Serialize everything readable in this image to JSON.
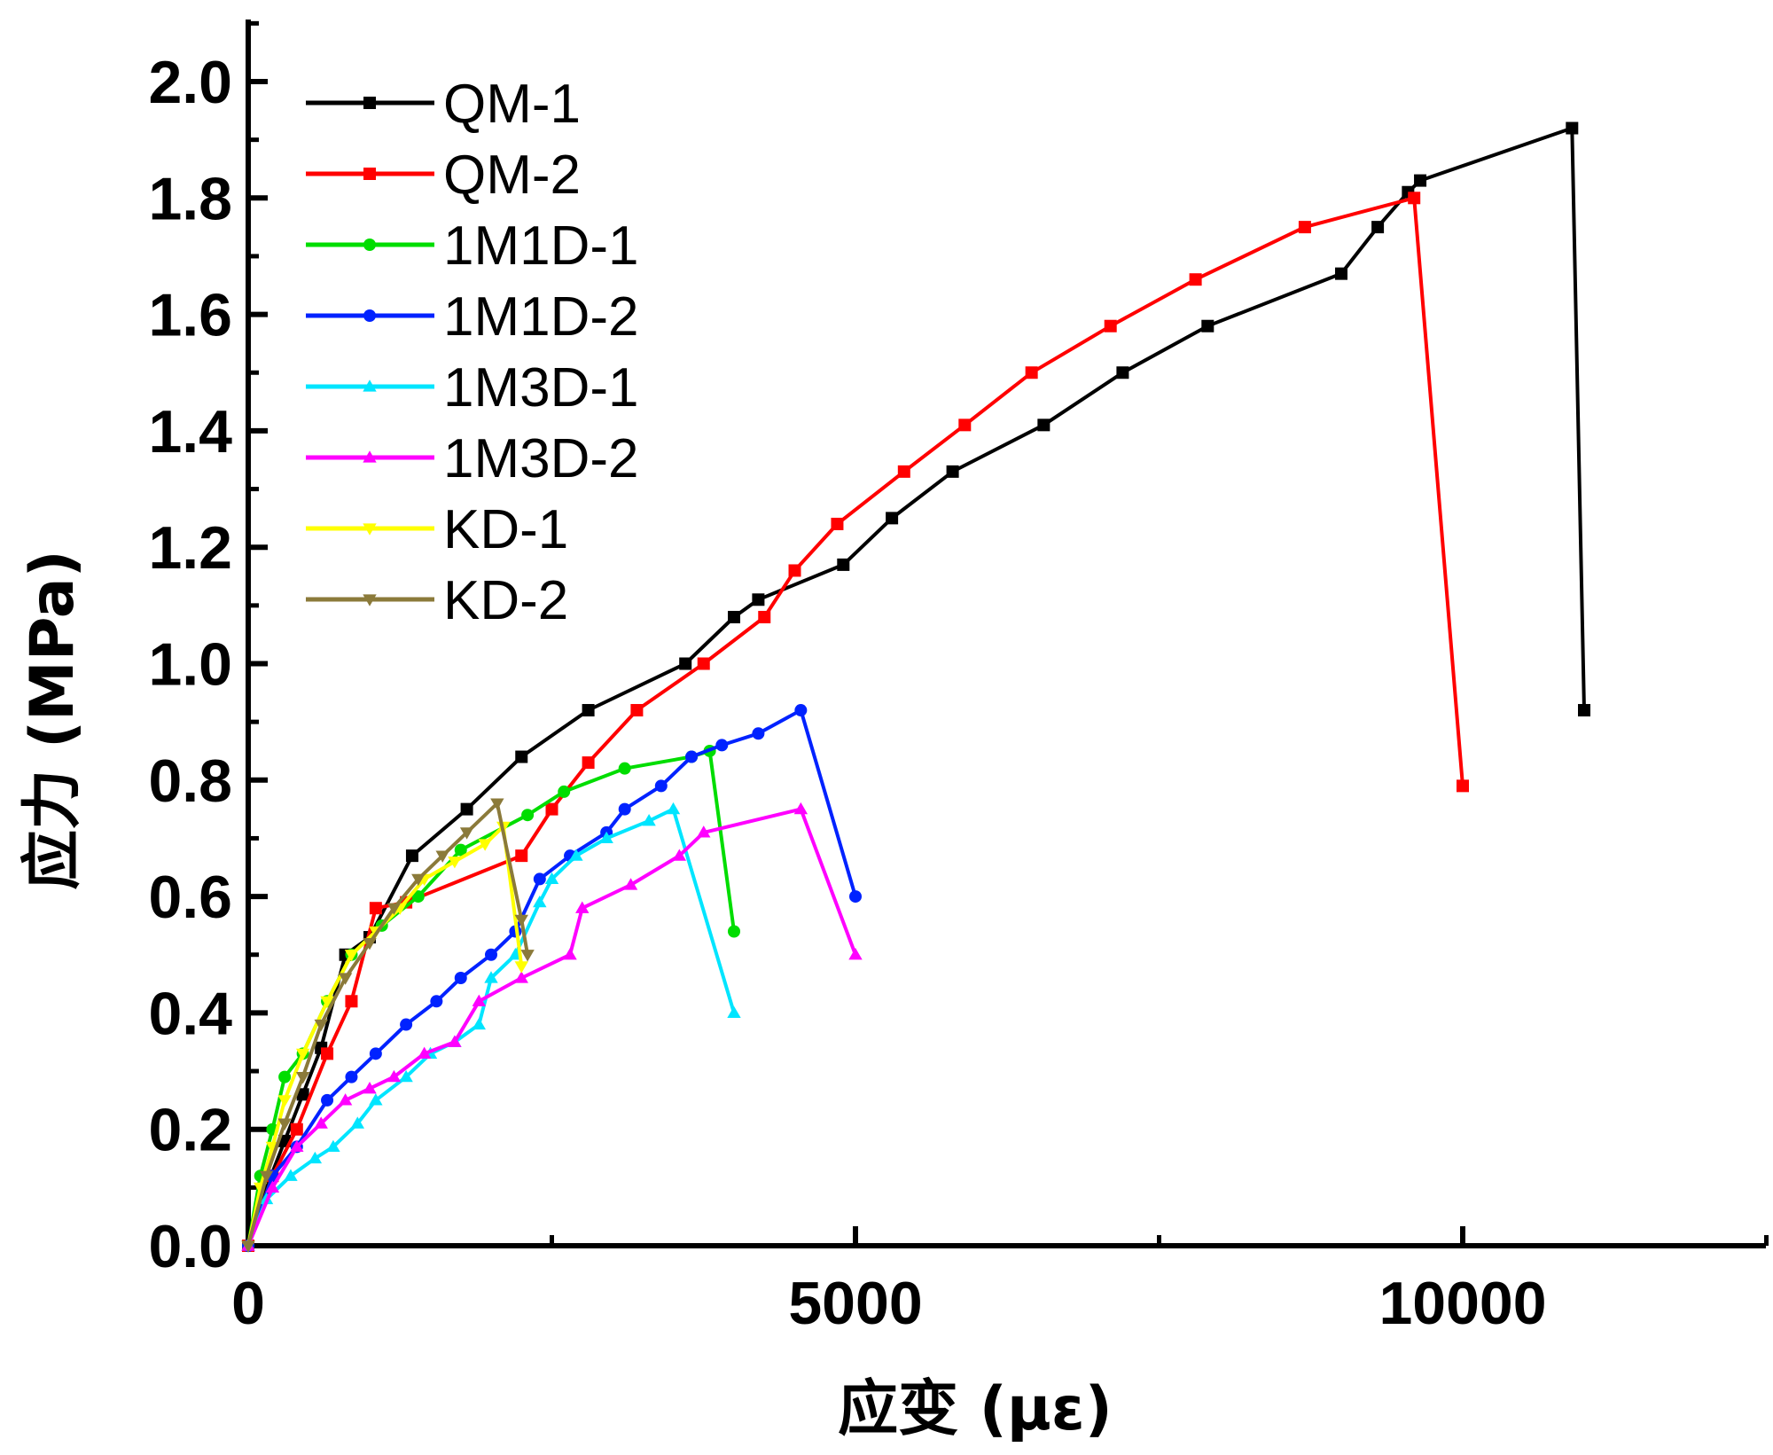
{
  "chart_data": {
    "type": "line",
    "title": "",
    "xlabel": "应变 (με)",
    "ylabel": "应力 (MPa)",
    "xlim": [
      0,
      12500
    ],
    "ylim": [
      0,
      2.1
    ],
    "xticks": [
      0,
      5000,
      10000
    ],
    "xtick_labels": [
      "0",
      "5000",
      "10000"
    ],
    "yticks": [
      0.0,
      0.2,
      0.4,
      0.6,
      0.8,
      1.0,
      1.2,
      1.4,
      1.6,
      1.8,
      2.0
    ],
    "ytick_labels": [
      "0.0",
      "0.2",
      "0.4",
      "0.6",
      "0.8",
      "1.0",
      "1.2",
      "1.4",
      "1.6",
      "1.8",
      "2.0"
    ],
    "legend_position": "top-left",
    "grid": false,
    "series": [
      {
        "name": "QM-1",
        "color": "#000000",
        "marker": "square",
        "x": [
          0,
          150,
          300,
          450,
          600,
          800,
          1000,
          1350,
          1800,
          2250,
          2800,
          3600,
          4000,
          4200,
          4900,
          5300,
          5800,
          6550,
          7200,
          7900,
          9000,
          9300,
          9550,
          9650,
          10900,
          11000
        ],
        "y": [
          0,
          0.1,
          0.18,
          0.26,
          0.34,
          0.5,
          0.53,
          0.67,
          0.75,
          0.84,
          0.92,
          1.0,
          1.08,
          1.11,
          1.17,
          1.25,
          1.33,
          1.41,
          1.5,
          1.58,
          1.67,
          1.75,
          1.81,
          1.83,
          1.92,
          0.92
        ]
      },
      {
        "name": "QM-2",
        "color": "#ff0000",
        "marker": "square",
        "x": [
          0,
          200,
          400,
          650,
          850,
          1050,
          1300,
          2250,
          2500,
          2800,
          3200,
          3750,
          4250,
          4500,
          4850,
          5400,
          5900,
          6450,
          7100,
          7800,
          8700,
          9600,
          10000
        ],
        "y": [
          0,
          0.12,
          0.2,
          0.33,
          0.42,
          0.58,
          0.59,
          0.67,
          0.75,
          0.83,
          0.92,
          1.0,
          1.08,
          1.16,
          1.24,
          1.33,
          1.41,
          1.5,
          1.58,
          1.66,
          1.75,
          1.8,
          0.79
        ]
      },
      {
        "name": "1M1D-1",
        "color": "#00dd00",
        "marker": "circle",
        "x": [
          0,
          100,
          200,
          300,
          450,
          650,
          850,
          1100,
          1400,
          1750,
          2300,
          2600,
          3100,
          3650,
          3800,
          4000
        ],
        "y": [
          0,
          0.12,
          0.2,
          0.29,
          0.33,
          0.42,
          0.5,
          0.55,
          0.6,
          0.68,
          0.74,
          0.78,
          0.82,
          0.84,
          0.85,
          0.54
        ]
      },
      {
        "name": "1M1D-2",
        "color": "#0022ff",
        "marker": "circle",
        "x": [
          0,
          200,
          400,
          650,
          850,
          1050,
          1300,
          1550,
          1750,
          2000,
          2200,
          2400,
          2650,
          2950,
          3100,
          3400,
          3650,
          3900,
          4200,
          4550,
          5000
        ],
        "y": [
          0,
          0.12,
          0.17,
          0.25,
          0.29,
          0.33,
          0.38,
          0.42,
          0.46,
          0.5,
          0.54,
          0.63,
          0.67,
          0.71,
          0.75,
          0.79,
          0.84,
          0.86,
          0.88,
          0.92,
          0.6
        ]
      },
      {
        "name": "1M3D-1",
        "color": "#00e5ff",
        "marker": "triangle-up",
        "x": [
          0,
          150,
          350,
          550,
          700,
          900,
          1050,
          1300,
          1500,
          1700,
          1900,
          2000,
          2200,
          2400,
          2500,
          2700,
          2950,
          3300,
          3500,
          4000
        ],
        "y": [
          0,
          0.08,
          0.12,
          0.15,
          0.17,
          0.21,
          0.25,
          0.29,
          0.33,
          0.35,
          0.38,
          0.46,
          0.5,
          0.59,
          0.63,
          0.67,
          0.7,
          0.73,
          0.75,
          0.4
        ]
      },
      {
        "name": "1M3D-2",
        "color": "#ff00ff",
        "marker": "triangle-up",
        "x": [
          0,
          200,
          400,
          600,
          800,
          1000,
          1200,
          1450,
          1700,
          1900,
          2250,
          2650,
          2750,
          3150,
          3550,
          3750,
          4550,
          5000
        ],
        "y": [
          0,
          0.1,
          0.17,
          0.21,
          0.25,
          0.27,
          0.29,
          0.33,
          0.35,
          0.42,
          0.46,
          0.5,
          0.58,
          0.62,
          0.67,
          0.71,
          0.75,
          0.5
        ]
      },
      {
        "name": "KD-1",
        "color": "#ffff00",
        "marker": "triangle-down",
        "x": [
          0,
          100,
          200,
          300,
          450,
          650,
          850,
          1050,
          1250,
          1450,
          1700,
          1950,
          2100,
          2250
        ],
        "y": [
          0,
          0.1,
          0.17,
          0.25,
          0.33,
          0.42,
          0.5,
          0.54,
          0.58,
          0.63,
          0.66,
          0.69,
          0.72,
          0.48
        ]
      },
      {
        "name": "KD-2",
        "color": "#8b7a3a",
        "marker": "triangle-down",
        "x": [
          0,
          150,
          300,
          450,
          600,
          800,
          1000,
          1200,
          1400,
          1600,
          1800,
          2050,
          2250,
          2300
        ],
        "y": [
          0,
          0.12,
          0.21,
          0.29,
          0.38,
          0.46,
          0.52,
          0.58,
          0.63,
          0.67,
          0.71,
          0.76,
          0.56,
          0.5
        ]
      }
    ]
  }
}
